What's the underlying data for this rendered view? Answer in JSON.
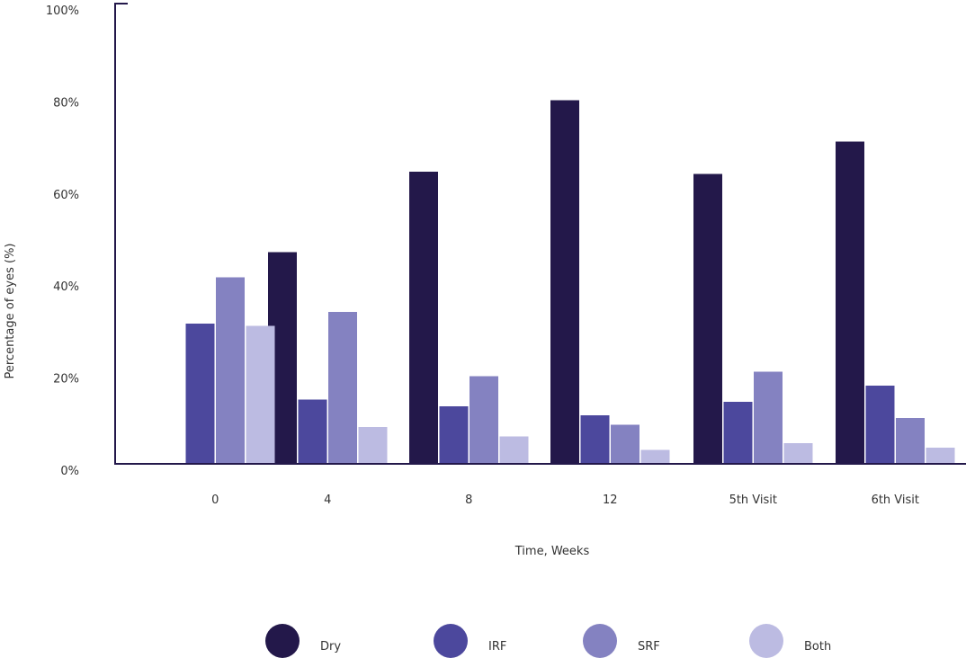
{
  "chart_data": {
    "type": "bar",
    "title": "",
    "xlabel": "Time, Weeks",
    "ylabel": "Percentage of eyes (%)",
    "ylim": [
      0,
      100
    ],
    "y_ticks": [
      {
        "value": 0,
        "label": "0%"
      },
      {
        "value": 20,
        "label": "20%"
      },
      {
        "value": 40,
        "label": "40%"
      },
      {
        "value": 60,
        "label": "60%"
      },
      {
        "value": 80,
        "label": "80%"
      },
      {
        "value": 100,
        "label": "100%"
      }
    ],
    "categories": [
      "0",
      "4",
      "8",
      "12",
      "5th Visit",
      "6th Visit"
    ],
    "grid": false,
    "legend_position": "bottom",
    "series": [
      {
        "name": "Dry",
        "color": "#23184a",
        "values": [
          0,
          46,
          63.5,
          79,
          63,
          70
        ]
      },
      {
        "name": "IRF",
        "color": "#4c489d",
        "values": [
          30.5,
          14,
          12.5,
          10.5,
          13.5,
          17
        ]
      },
      {
        "name": "SRF",
        "color": "#8482c1",
        "values": [
          40.5,
          33,
          19,
          8.5,
          20,
          10
        ]
      },
      {
        "name": "Both",
        "color": "#bcbbe2",
        "values": [
          30,
          8,
          6,
          3,
          4.5,
          3.5
        ]
      }
    ]
  }
}
